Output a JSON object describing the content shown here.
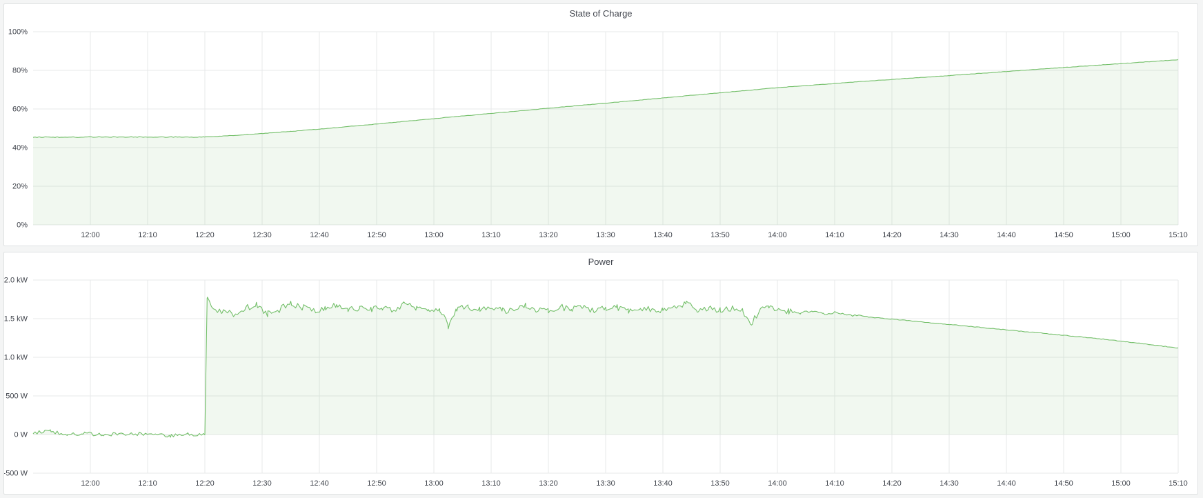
{
  "page": {
    "background": "#f4f5f5",
    "panel_background": "#ffffff",
    "panel_border": "#dfe1e2",
    "grid_color": "#e7e9ea",
    "axis_label_color": "#3f434b",
    "title_color": "#42464e"
  },
  "chart_data": [
    {
      "type": "area",
      "title": "State of Charge",
      "xlabel": "",
      "ylabel": "",
      "unit": "percent",
      "legend": "none",
      "grid": "on",
      "series_color": "#73bf69",
      "fill_color": "rgba(115,191,105,0.10)",
      "ylim": [
        0,
        100
      ],
      "xlim_minutes": [
        710,
        910
      ],
      "yticks": [
        {
          "v": 0,
          "label": "0%"
        },
        {
          "v": 20,
          "label": "20%"
        },
        {
          "v": 40,
          "label": "40%"
        },
        {
          "v": 60,
          "label": "60%"
        },
        {
          "v": 80,
          "label": "80%"
        },
        {
          "v": 100,
          "label": "100%"
        }
      ],
      "xticks": [
        {
          "v": 720,
          "label": "12:00"
        },
        {
          "v": 730,
          "label": "12:10"
        },
        {
          "v": 740,
          "label": "12:20"
        },
        {
          "v": 750,
          "label": "12:30"
        },
        {
          "v": 760,
          "label": "12:40"
        },
        {
          "v": 770,
          "label": "12:50"
        },
        {
          "v": 780,
          "label": "13:00"
        },
        {
          "v": 790,
          "label": "13:10"
        },
        {
          "v": 800,
          "label": "13:20"
        },
        {
          "v": 810,
          "label": "13:30"
        },
        {
          "v": 820,
          "label": "13:40"
        },
        {
          "v": 830,
          "label": "13:50"
        },
        {
          "v": 840,
          "label": "14:00"
        },
        {
          "v": 850,
          "label": "14:10"
        },
        {
          "v": 860,
          "label": "14:20"
        },
        {
          "v": 870,
          "label": "14:30"
        },
        {
          "v": 880,
          "label": "14:40"
        },
        {
          "v": 890,
          "label": "14:50"
        },
        {
          "v": 900,
          "label": "15:00"
        },
        {
          "v": 910,
          "label": "15:10"
        }
      ],
      "points": [
        [
          710,
          45.4
        ],
        [
          725,
          45.5
        ],
        [
          740,
          45.5
        ],
        [
          745,
          46.3
        ],
        [
          750,
          47.3
        ],
        [
          755,
          48.4
        ],
        [
          760,
          49.6
        ],
        [
          770,
          52.2
        ],
        [
          780,
          55.0
        ],
        [
          790,
          57.7
        ],
        [
          800,
          60.4
        ],
        [
          810,
          63.0
        ],
        [
          820,
          65.7
        ],
        [
          830,
          68.4
        ],
        [
          840,
          71.0
        ],
        [
          850,
          73.2
        ],
        [
          860,
          75.3
        ],
        [
          870,
          77.3
        ],
        [
          880,
          79.4
        ],
        [
          890,
          81.5
        ],
        [
          900,
          83.5
        ],
        [
          910,
          85.5
        ]
      ],
      "noise_segments": [
        {
          "from": 710,
          "to": 740,
          "amp": 0.2
        },
        {
          "from": 740,
          "to": 910,
          "amp": 0.1
        }
      ]
    },
    {
      "type": "area",
      "title": "Power",
      "xlabel": "",
      "ylabel": "",
      "unit": "watt",
      "legend": "none",
      "grid": "on",
      "series_color": "#73bf69",
      "fill_color": "rgba(115,191,105,0.10)",
      "ylim": [
        -500,
        2000
      ],
      "xlim_minutes": [
        710,
        910
      ],
      "yticks": [
        {
          "v": -500,
          "label": "-500 W"
        },
        {
          "v": 0,
          "label": "0 W"
        },
        {
          "v": 500,
          "label": "500 W"
        },
        {
          "v": 1000,
          "label": "1.0 kW"
        },
        {
          "v": 1500,
          "label": "1.5 kW"
        },
        {
          "v": 2000,
          "label": "2.0 kW"
        }
      ],
      "xticks": [
        {
          "v": 720,
          "label": "12:00"
        },
        {
          "v": 730,
          "label": "12:10"
        },
        {
          "v": 740,
          "label": "12:20"
        },
        {
          "v": 750,
          "label": "12:30"
        },
        {
          "v": 760,
          "label": "12:40"
        },
        {
          "v": 770,
          "label": "12:50"
        },
        {
          "v": 780,
          "label": "13:00"
        },
        {
          "v": 790,
          "label": "13:10"
        },
        {
          "v": 800,
          "label": "13:20"
        },
        {
          "v": 810,
          "label": "13:30"
        },
        {
          "v": 820,
          "label": "13:40"
        },
        {
          "v": 830,
          "label": "13:50"
        },
        {
          "v": 840,
          "label": "14:00"
        },
        {
          "v": 850,
          "label": "14:10"
        },
        {
          "v": 860,
          "label": "14:20"
        },
        {
          "v": 870,
          "label": "14:30"
        },
        {
          "v": 880,
          "label": "14:40"
        },
        {
          "v": 890,
          "label": "14:50"
        },
        {
          "v": 900,
          "label": "15:00"
        },
        {
          "v": 910,
          "label": "15:10"
        }
      ],
      "points": [
        [
          710,
          25
        ],
        [
          713,
          45
        ],
        [
          716,
          0
        ],
        [
          719,
          20
        ],
        [
          722,
          -10
        ],
        [
          725,
          15
        ],
        [
          728,
          5
        ],
        [
          731,
          20
        ],
        [
          734,
          -15
        ],
        [
          737,
          10
        ],
        [
          740,
          0
        ],
        [
          740.4,
          1760
        ],
        [
          741.5,
          1640
        ],
        [
          743,
          1600
        ],
        [
          745,
          1560
        ],
        [
          747,
          1640
        ],
        [
          749,
          1670
        ],
        [
          751,
          1560
        ],
        [
          753,
          1620
        ],
        [
          755,
          1700
        ],
        [
          757,
          1650
        ],
        [
          759,
          1600
        ],
        [
          761,
          1640
        ],
        [
          763,
          1690
        ],
        [
          765,
          1610
        ],
        [
          767,
          1630
        ],
        [
          769,
          1620
        ],
        [
          771,
          1650
        ],
        [
          773,
          1600
        ],
        [
          775,
          1690
        ],
        [
          777,
          1640
        ],
        [
          779,
          1610
        ],
        [
          781,
          1630
        ],
        [
          782.5,
          1400
        ],
        [
          784,
          1620
        ],
        [
          786,
          1650
        ],
        [
          788,
          1620
        ],
        [
          790,
          1640
        ],
        [
          792,
          1600
        ],
        [
          794,
          1630
        ],
        [
          796,
          1680
        ],
        [
          798,
          1620
        ],
        [
          800,
          1610
        ],
        [
          802,
          1650
        ],
        [
          804,
          1625
        ],
        [
          806,
          1640
        ],
        [
          808,
          1600
        ],
        [
          810,
          1630
        ],
        [
          812,
          1640
        ],
        [
          814,
          1610
        ],
        [
          816,
          1630
        ],
        [
          818,
          1615
        ],
        [
          820,
          1600
        ],
        [
          822,
          1660
        ],
        [
          824,
          1690
        ],
        [
          826,
          1620
        ],
        [
          828,
          1630
        ],
        [
          830,
          1610
        ],
        [
          832,
          1640
        ],
        [
          834,
          1590
        ],
        [
          835.5,
          1450
        ],
        [
          837,
          1620
        ],
        [
          838.5,
          1630
        ],
        [
          840,
          1610
        ],
        [
          842,
          1590
        ],
        [
          844,
          1570
        ],
        [
          846,
          1600
        ],
        [
          848,
          1560
        ],
        [
          850,
          1580
        ],
        [
          852,
          1545
        ],
        [
          856,
          1520
        ],
        [
          860,
          1495
        ],
        [
          865,
          1460
        ],
        [
          870,
          1425
        ],
        [
          875,
          1390
        ],
        [
          880,
          1355
        ],
        [
          885,
          1320
        ],
        [
          890,
          1285
        ],
        [
          895,
          1250
        ],
        [
          900,
          1210
        ],
        [
          905,
          1165
        ],
        [
          910,
          1120
        ]
      ],
      "noise_segments": [
        {
          "from": 710,
          "to": 740,
          "amp": 24
        },
        {
          "from": 740.4,
          "to": 843,
          "amp": 42
        },
        {
          "from": 843,
          "to": 856,
          "amp": 16
        },
        {
          "from": 856,
          "to": 910,
          "amp": 4
        }
      ]
    }
  ]
}
